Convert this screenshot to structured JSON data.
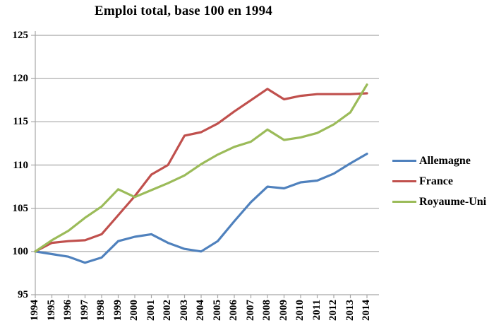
{
  "title": "Emploi total, base 100 en 1994",
  "chart_data": {
    "type": "line",
    "title": "Emploi total, base 100 en 1994",
    "x": [
      1994,
      1995,
      1996,
      1997,
      1998,
      1999,
      2000,
      2001,
      2002,
      2003,
      2004,
      2005,
      2006,
      2007,
      2008,
      2009,
      2010,
      2011,
      2012,
      2013,
      2014
    ],
    "x_labels": [
      "1994",
      "1995",
      "1996",
      "1997",
      "1998",
      "1999",
      "2000",
      "2001",
      "2002",
      "2003",
      "2004",
      "2005",
      "2006",
      "2007",
      "2008",
      "2009",
      "2010",
      "2011",
      "2012",
      "2013",
      "2014"
    ],
    "series": [
      {
        "name": "Allemagne",
        "color": "#4F81BD",
        "values": [
          100,
          99.7,
          99.4,
          98.7,
          99.3,
          101.2,
          101.7,
          102.0,
          101.0,
          100.3,
          100.0,
          101.2,
          103.5,
          105.7,
          107.5,
          107.3,
          108.0,
          108.2,
          109.0,
          110.2,
          111.3
        ]
      },
      {
        "name": "France",
        "color": "#C0504D",
        "values": [
          100,
          101.0,
          101.2,
          101.3,
          102.0,
          104.2,
          106.4,
          108.9,
          110.0,
          113.4,
          113.8,
          114.8,
          116.2,
          117.5,
          118.8,
          117.6,
          118.0,
          118.2,
          118.2,
          118.2,
          118.3
        ]
      },
      {
        "name": "Royaume-Uni",
        "color": "#9BBB59",
        "values": [
          100,
          101.3,
          102.4,
          103.9,
          105.2,
          107.2,
          106.3,
          107.1,
          107.9,
          108.8,
          110.1,
          111.2,
          112.1,
          112.7,
          114.1,
          112.9,
          113.2,
          113.7,
          114.7,
          116.1,
          119.3
        ]
      }
    ],
    "ylim": [
      95,
      125
    ],
    "yticks": [
      95,
      100,
      105,
      110,
      115,
      120,
      125
    ],
    "ytick_labels": [
      "95",
      "100",
      "105",
      "110",
      "115",
      "120",
      "125"
    ],
    "xlabel": "",
    "ylabel": "",
    "grid": true,
    "legend_position": "right"
  },
  "colors": {
    "background": "#FFFFFF",
    "gridline": "#A6A6A6",
    "axis": "#A6A6A6",
    "text": "#000000",
    "allemagne": "#4F81BD",
    "france": "#C0504D",
    "royaume_uni": "#9BBB59"
  }
}
